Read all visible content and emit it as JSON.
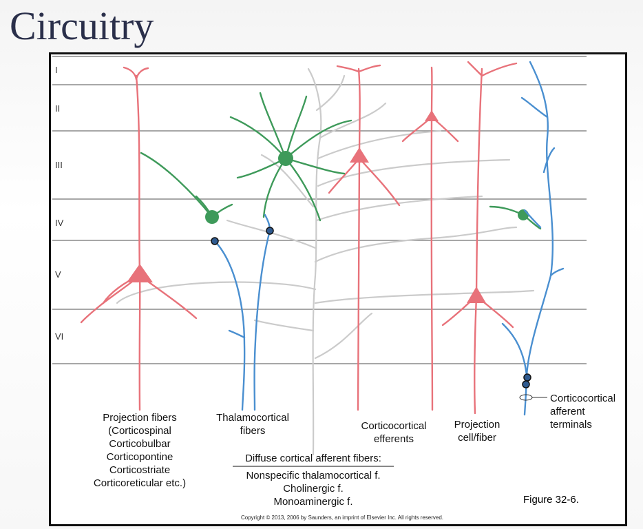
{
  "slide": {
    "title": "Circuitry"
  },
  "layers": [
    "I",
    "II",
    "III",
    "IV",
    "V",
    "VI"
  ],
  "labels": {
    "projection_fibers": [
      "Projection fibers",
      "(Corticospinal",
      "Corticobulbar",
      "Corticopontine",
      "Corticostriate",
      "Corticoreticular etc.)"
    ],
    "thalamocortical": [
      "Thalamocortical",
      "fibers"
    ],
    "diffuse_heading": "Diffuse cortical afferent fibers:",
    "diffuse_items": [
      "Nonspecific thalamocortical f.",
      "Cholinergic f.",
      "Monoaminergic f."
    ],
    "corticocortical_efferents": [
      "Corticocortical",
      "efferents"
    ],
    "projection_cell": [
      "Projection",
      "cell/fiber"
    ],
    "corticocortical_afferent": [
      "Corticocortical",
      "afferent",
      "terminals"
    ]
  },
  "figure_number": "Figure 32-6.",
  "copyright": "Copyright © 2013, 2006 by Saunders, an imprint of Elsevier Inc. All rights reserved.",
  "colors": {
    "efferent": "#e8727a",
    "afferent_blue": "#4a8fd0",
    "interneuron_green": "#3e9a5a",
    "diffuse_gray": "#c9c9c9",
    "layer_line": "#888888"
  }
}
